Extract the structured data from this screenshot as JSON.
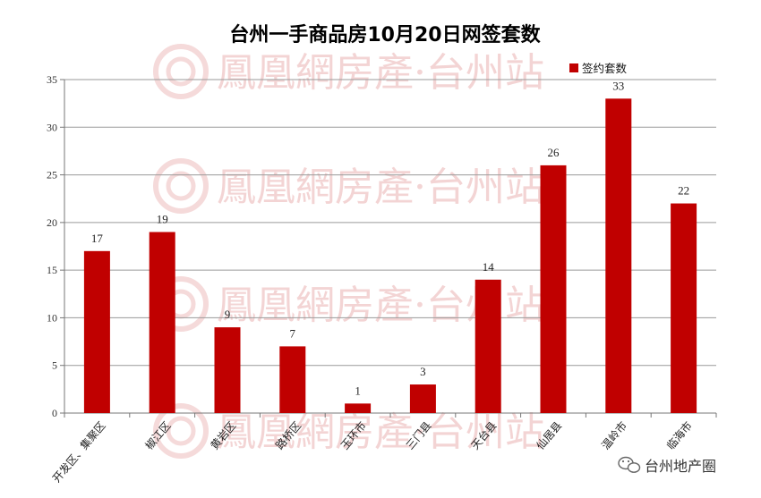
{
  "watermark": {
    "text": "鳳凰網房產·台州站"
  },
  "brand": {
    "text": "台州地产圈",
    "icon": "wechat-icon"
  },
  "colors": {
    "bar": "#c00000",
    "grid": "#9a9a9a",
    "axis": "#777777"
  },
  "chart_data": {
    "type": "bar",
    "title": "台州一手商品房10月20日网签套数",
    "xlabel": "",
    "ylabel": "",
    "categories": [
      "开发区、集聚区",
      "椒江区",
      "黄岩区",
      "路桥区",
      "玉环市",
      "三门县",
      "天台县",
      "仙居县",
      "温岭市",
      "临海市"
    ],
    "series": [
      {
        "name": "签约套数",
        "values": [
          17,
          19,
          9,
          7,
          1,
          3,
          14,
          26,
          33,
          22
        ]
      }
    ],
    "ylim": [
      0,
      35
    ],
    "yticks": [
      0,
      5,
      10,
      15,
      20,
      25,
      30,
      35
    ],
    "grid": true,
    "legend": "top-right",
    "data_labels": true
  }
}
